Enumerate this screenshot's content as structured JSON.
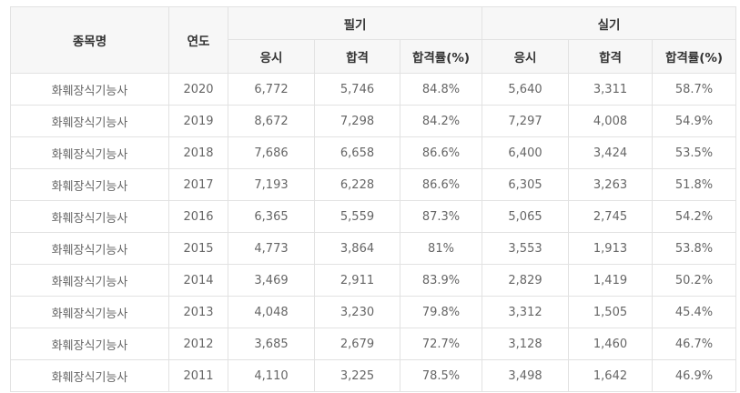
{
  "table": {
    "headers": {
      "name": "종목명",
      "year": "연도",
      "written": "필기",
      "practical": "실기",
      "applicants": "응시",
      "passed": "합격",
      "pass_rate": "합격률(%)"
    },
    "rows": [
      {
        "name": "화훼장식기능사",
        "year": "2020",
        "w_app": "6,772",
        "w_pass": "5,746",
        "w_rate": "84.8%",
        "p_app": "5,640",
        "p_pass": "3,311",
        "p_rate": "58.7%"
      },
      {
        "name": "화훼장식기능사",
        "year": "2019",
        "w_app": "8,672",
        "w_pass": "7,298",
        "w_rate": "84.2%",
        "p_app": "7,297",
        "p_pass": "4,008",
        "p_rate": "54.9%"
      },
      {
        "name": "화훼장식기능사",
        "year": "2018",
        "w_app": "7,686",
        "w_pass": "6,658",
        "w_rate": "86.6%",
        "p_app": "6,400",
        "p_pass": "3,424",
        "p_rate": "53.5%"
      },
      {
        "name": "화훼장식기능사",
        "year": "2017",
        "w_app": "7,193",
        "w_pass": "6,228",
        "w_rate": "86.6%",
        "p_app": "6,305",
        "p_pass": "3,263",
        "p_rate": "51.8%"
      },
      {
        "name": "화훼장식기능사",
        "year": "2016",
        "w_app": "6,365",
        "w_pass": "5,559",
        "w_rate": "87.3%",
        "p_app": "5,065",
        "p_pass": "2,745",
        "p_rate": "54.2%"
      },
      {
        "name": "화훼장식기능사",
        "year": "2015",
        "w_app": "4,773",
        "w_pass": "3,864",
        "w_rate": "81%",
        "p_app": "3,553",
        "p_pass": "1,913",
        "p_rate": "53.8%"
      },
      {
        "name": "화훼장식기능사",
        "year": "2014",
        "w_app": "3,469",
        "w_pass": "2,911",
        "w_rate": "83.9%",
        "p_app": "2,829",
        "p_pass": "1,419",
        "p_rate": "50.2%"
      },
      {
        "name": "화훼장식기능사",
        "year": "2013",
        "w_app": "4,048",
        "w_pass": "3,230",
        "w_rate": "79.8%",
        "p_app": "3,312",
        "p_pass": "1,505",
        "p_rate": "45.4%"
      },
      {
        "name": "화훼장식기능사",
        "year": "2012",
        "w_app": "3,685",
        "w_pass": "2,679",
        "w_rate": "72.7%",
        "p_app": "3,128",
        "p_pass": "1,460",
        "p_rate": "46.7%"
      },
      {
        "name": "화훼장식기능사",
        "year": "2011",
        "w_app": "4,110",
        "w_pass": "3,225",
        "w_rate": "78.5%",
        "p_app": "3,498",
        "p_pass": "1,642",
        "p_rate": "46.9%"
      }
    ]
  }
}
